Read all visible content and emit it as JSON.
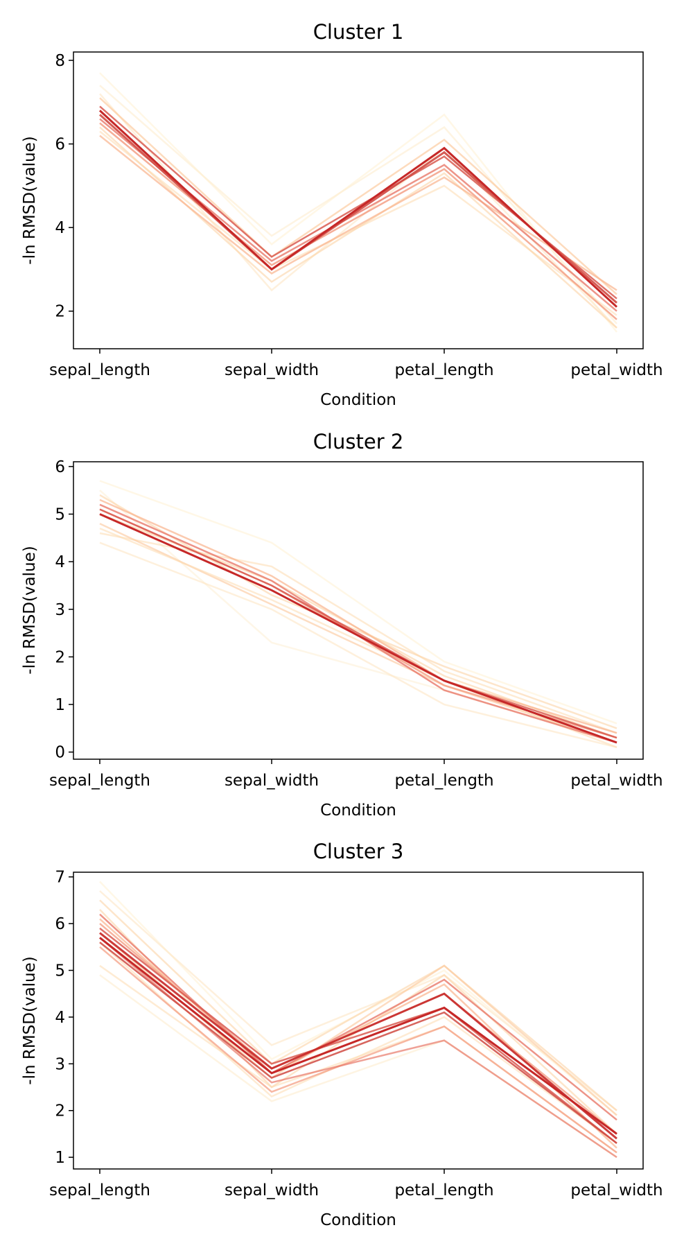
{
  "chart_data": [
    {
      "type": "line",
      "title": "Cluster 1",
      "xlabel": "Condition",
      "ylabel": "-ln RMSD(value)",
      "categories": [
        "sepal_length",
        "sepal_width",
        "petal_length",
        "petal_width"
      ],
      "yticks": [
        "2",
        "4",
        "6",
        "8"
      ],
      "ytick_values": [
        2,
        4,
        6,
        8
      ],
      "ylim": [
        1.1,
        8.2
      ],
      "grid": false,
      "series": [
        {
          "values": [
            7.7,
            3.6,
            6.7,
            1.5
          ],
          "color": "#fff1d6",
          "opacity": 0.6
        },
        {
          "values": [
            7.4,
            3.8,
            6.4,
            1.7
          ],
          "color": "#feedcf",
          "opacity": 0.6
        },
        {
          "values": [
            7.2,
            2.5,
            5.9,
            1.6
          ],
          "color": "#fde6c4",
          "opacity": 0.6
        },
        {
          "values": [
            6.3,
            3.0,
            5.0,
            1.9
          ],
          "color": "#fdddb5",
          "opacity": 0.6
        },
        {
          "values": [
            6.4,
            2.7,
            5.3,
            1.6
          ],
          "color": "#fcd3a6",
          "opacity": 0.6
        },
        {
          "values": [
            7.1,
            3.3,
            6.1,
            2.4
          ],
          "color": "#fcc79a",
          "opacity": 0.65
        },
        {
          "values": [
            6.2,
            2.9,
            5.2,
            2.5
          ],
          "color": "#f9b48d",
          "opacity": 0.7
        },
        {
          "values": [
            6.5,
            3.1,
            5.4,
            1.8
          ],
          "color": "#f39a7e",
          "opacity": 0.8
        },
        {
          "values": [
            6.6,
            3.2,
            5.5,
            2.0
          ],
          "color": "#e8796a",
          "opacity": 0.8
        },
        {
          "values": [
            6.9,
            3.3,
            5.7,
            2.3
          ],
          "color": "#d95a50",
          "opacity": 0.85
        },
        {
          "values": [
            6.7,
            3.0,
            5.8,
            2.2
          ],
          "color": "#d04a42",
          "opacity": 0.9
        },
        {
          "values": [
            6.8,
            3.0,
            5.9,
            2.1
          ],
          "color": "#c62828",
          "opacity": 1
        }
      ]
    },
    {
      "type": "line",
      "title": "Cluster 2",
      "xlabel": "Condition",
      "ylabel": "-ln RMSD(value)",
      "categories": [
        "sepal_length",
        "sepal_width",
        "petal_length",
        "petal_width"
      ],
      "yticks": [
        "0",
        "1",
        "2",
        "3",
        "4",
        "5",
        "6"
      ],
      "ytick_values": [
        0,
        1,
        2,
        3,
        4,
        5,
        6
      ],
      "ylim": [
        -0.15,
        6.1
      ],
      "grid": false,
      "series": [
        {
          "values": [
            5.7,
            4.4,
            1.9,
            0.6
          ],
          "color": "#fff1d6",
          "opacity": 0.6
        },
        {
          "values": [
            5.5,
            2.3,
            1.3,
            0.2
          ],
          "color": "#feedcf",
          "opacity": 0.5
        },
        {
          "values": [
            4.4,
            3.0,
            1.0,
            0.1
          ],
          "color": "#fde6c4",
          "opacity": 0.6
        },
        {
          "values": [
            4.6,
            3.9,
            1.7,
            0.4
          ],
          "color": "#fdddb5",
          "opacity": 0.6
        },
        {
          "values": [
            5.4,
            3.3,
            1.8,
            0.5
          ],
          "color": "#fcd3a6",
          "opacity": 0.6
        },
        {
          "values": [
            4.8,
            3.1,
            1.4,
            0.2
          ],
          "color": "#fcc79a",
          "opacity": 0.6
        },
        {
          "values": [
            5.0,
            3.6,
            1.6,
            0.3
          ],
          "color": "#fcd3a6",
          "opacity": 0.6
        },
        {
          "values": [
            4.7,
            3.2,
            1.5,
            0.1
          ],
          "color": "#fdddb5",
          "opacity": 0.6
        },
        {
          "values": [
            5.3,
            3.7,
            1.5,
            0.4
          ],
          "color": "#f9b48d",
          "opacity": 0.7
        },
        {
          "values": [
            5.1,
            3.5,
            1.4,
            0.3
          ],
          "color": "#f39a7e",
          "opacity": 0.75
        },
        {
          "values": [
            5.2,
            3.6,
            1.3,
            0.2
          ],
          "color": "#e8796a",
          "opacity": 0.8
        },
        {
          "values": [
            5.1,
            3.5,
            1.5,
            0.3
          ],
          "color": "#d95a50",
          "opacity": 0.85
        },
        {
          "values": [
            5.0,
            3.4,
            1.5,
            0.2
          ],
          "color": "#c62828",
          "opacity": 1
        }
      ]
    },
    {
      "type": "line",
      "title": "Cluster 3",
      "xlabel": "Condition",
      "ylabel": "-ln RMSD(value)",
      "categories": [
        "sepal_length",
        "sepal_width",
        "petal_length",
        "petal_width"
      ],
      "yticks": [
        "1",
        "2",
        "3",
        "4",
        "5",
        "6",
        "7"
      ],
      "ytick_values": [
        1,
        2,
        3,
        4,
        5,
        6,
        7
      ],
      "ylim": [
        0.75,
        7.1
      ],
      "grid": false,
      "series": [
        {
          "values": [
            6.9,
            3.1,
            5.0,
            1.9
          ],
          "color": "#fff1d6",
          "opacity": 0.6
        },
        {
          "values": [
            4.9,
            2.2,
            3.5,
            1.0
          ],
          "color": "#feedcf",
          "opacity": 0.6
        },
        {
          "values": [
            6.7,
            3.4,
            4.9,
            2.0
          ],
          "color": "#fde6c4",
          "opacity": 0.6
        },
        {
          "values": [
            5.1,
            2.5,
            3.8,
            1.1
          ],
          "color": "#fdddb5",
          "opacity": 0.6
        },
        {
          "values": [
            6.5,
            3.0,
            5.1,
            2.0
          ],
          "color": "#fcd3a6",
          "opacity": 0.6
        },
        {
          "values": [
            5.8,
            2.7,
            5.1,
            1.9
          ],
          "color": "#fcc79a",
          "opacity": 0.6
        },
        {
          "values": [
            6.3,
            2.5,
            4.9,
            1.5
          ],
          "color": "#fcd3a6",
          "opacity": 0.6
        },
        {
          "values": [
            5.6,
            2.3,
            4.0,
            1.3
          ],
          "color": "#fdddb5",
          "opacity": 0.6
        },
        {
          "values": [
            6.1,
            2.8,
            4.7,
            1.2
          ],
          "color": "#f9b48d",
          "opacity": 0.7
        },
        {
          "values": [
            6.0,
            2.9,
            4.5,
            1.5
          ],
          "color": "#f39a7e",
          "opacity": 0.75
        },
        {
          "values": [
            5.5,
            2.4,
            3.8,
            1.1
          ],
          "color": "#f39a7e",
          "opacity": 0.7
        },
        {
          "values": [
            6.2,
            2.8,
            4.8,
            1.8
          ],
          "color": "#e8796a",
          "opacity": 0.8
        },
        {
          "values": [
            5.7,
            2.6,
            3.5,
            1.0
          ],
          "color": "#e8796a",
          "opacity": 0.7
        },
        {
          "values": [
            5.9,
            3.0,
            4.2,
            1.3
          ],
          "color": "#d95a50",
          "opacity": 0.85
        },
        {
          "values": [
            5.6,
            2.7,
            4.1,
            1.3
          ],
          "color": "#d04a42",
          "opacity": 0.85
        },
        {
          "values": [
            5.8,
            2.9,
            4.5,
            1.4
          ],
          "color": "#c62828",
          "opacity": 0.9
        },
        {
          "values": [
            5.7,
            2.8,
            4.2,
            1.5
          ],
          "color": "#c62828",
          "opacity": 1
        }
      ]
    }
  ]
}
